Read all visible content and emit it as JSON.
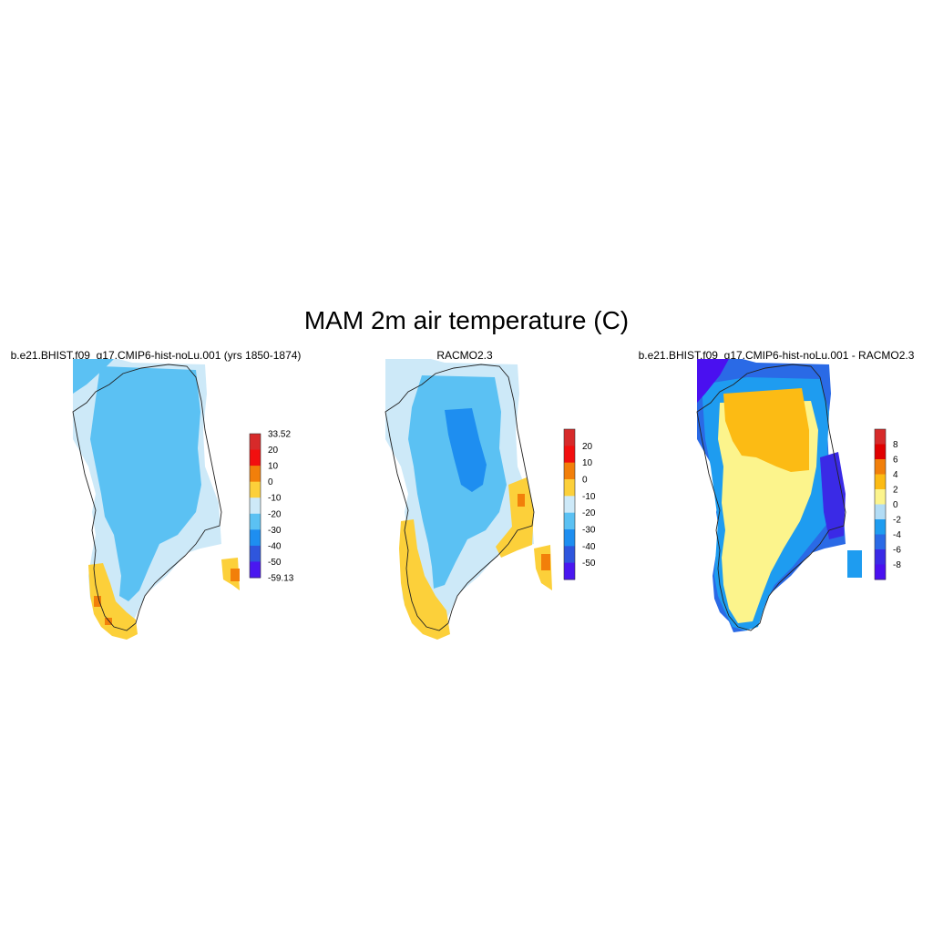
{
  "figure": {
    "title": "MAM 2m air temperature (C)"
  },
  "panels": [
    {
      "id": "model",
      "title": "b.e21.BHIST.f09_g17.CMIP6-hist-noLu.001 (yrs 1850-1874)",
      "colorbar": {
        "labels": [
          "33.52",
          "20",
          "10",
          "0",
          "-10",
          "-20",
          "-30",
          "-40",
          "-50",
          "-59.13"
        ],
        "colors": [
          "#d72a2a",
          "#f20f0f",
          "#f27f0a",
          "#fcd03a",
          "#cde9f8",
          "#5bc1f3",
          "#1e8ef0",
          "#2f56dd",
          "#4a17f0"
        ]
      }
    },
    {
      "id": "obs",
      "title": "RACMO2.3",
      "colorbar": {
        "labels": [
          "20",
          "10",
          "0",
          "-10",
          "-20",
          "-30",
          "-40",
          "-50"
        ],
        "colors": [
          "#d72a2a",
          "#f20f0f",
          "#f27f0a",
          "#fcd03a",
          "#cde9f8",
          "#5bc1f3",
          "#1e8ef0",
          "#2f56dd",
          "#4a17f0"
        ]
      }
    },
    {
      "id": "diff",
      "title": "b.e21.BHIST.f09_g17.CMIP6-hist-noLu.001 - RACMO2.3",
      "colorbar": {
        "labels": [
          "8",
          "6",
          "4",
          "2",
          "0",
          "-2",
          "-4",
          "-6",
          "-8"
        ],
        "colors": [
          "#d72a2a",
          "#e00000",
          "#f27f0a",
          "#fcbb14",
          "#fcf48c",
          "#b2dcf5",
          "#1e9cf0",
          "#2a6ae6",
          "#3a2ae6",
          "#4a10f0"
        ]
      }
    }
  ]
}
